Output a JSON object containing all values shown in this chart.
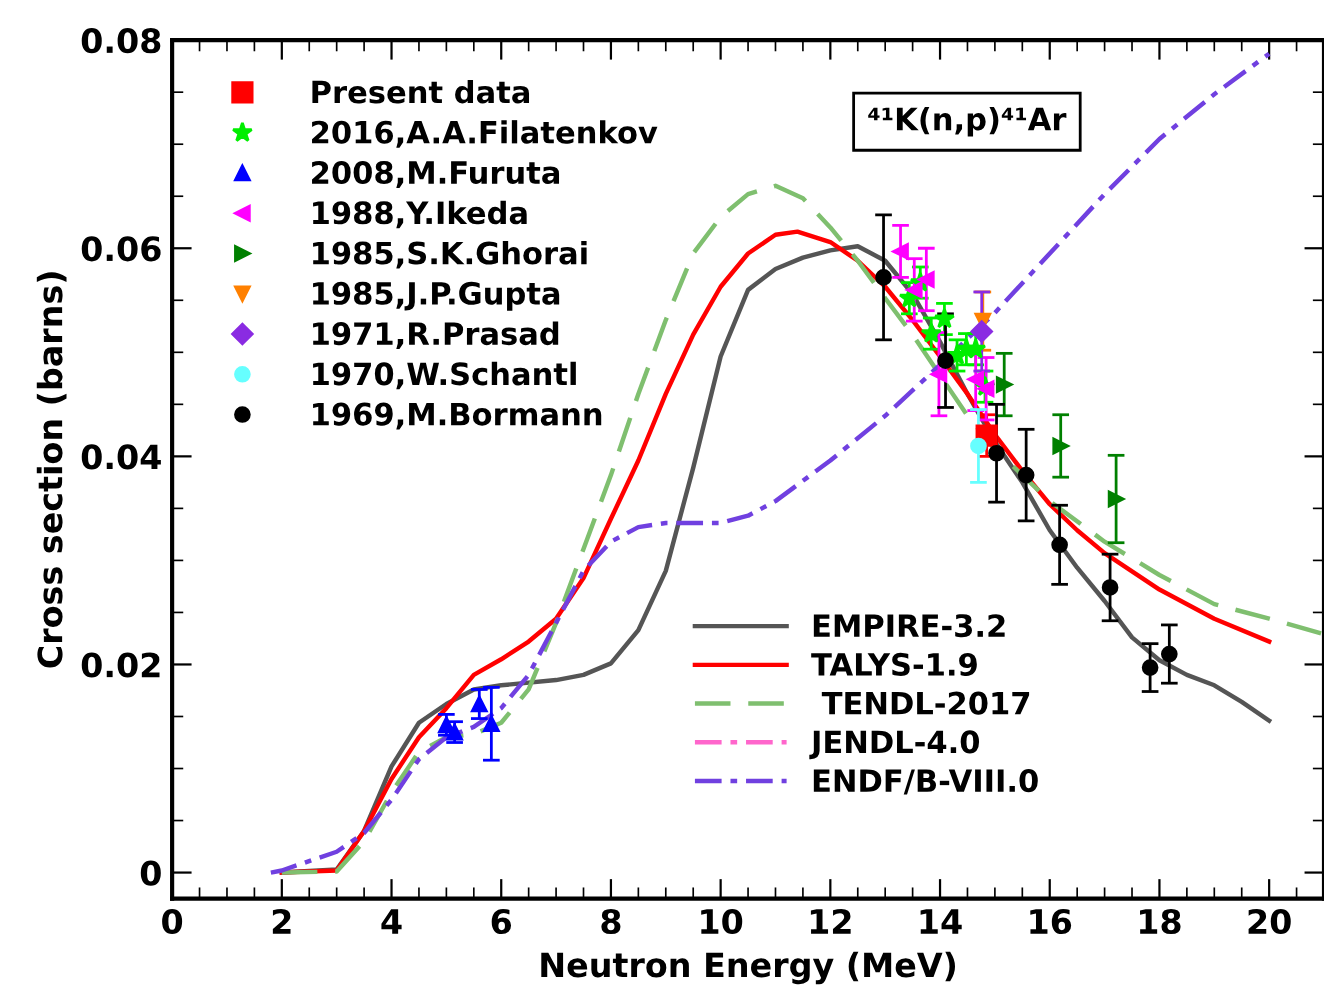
{
  "chart_data": {
    "type": "line",
    "xlabel": "Neutron Energy (MeV)",
    "ylabel": "Cross section (barns)",
    "annotations": [
      "⁴¹K(n,p)⁴¹Ar"
    ],
    "xlim": [
      0,
      21
    ],
    "ylim": [
      -0.0025,
      0.08
    ],
    "xticks": [
      0,
      2,
      4,
      6,
      8,
      10,
      12,
      14,
      16,
      18,
      20
    ],
    "yticks": [
      0,
      0.02,
      0.04,
      0.06,
      0.08
    ],
    "legend": "top left",
    "grid": false,
    "series": [
      {
        "name": "Present data",
        "type": "scatter",
        "marker": "square",
        "color": "#ff0000",
        "x": [
          14.85
        ],
        "values": [
          0.042
        ],
        "errors": [
          0.002
        ]
      },
      {
        "name": "2016,A.A.Filatenkov",
        "type": "scatter",
        "marker": "star",
        "color": "#00ee00",
        "x": [
          13.44,
          13.64,
          13.84,
          14.08,
          14.31,
          14.48,
          14.65,
          14.82
        ],
        "values": [
          0.0552,
          0.0567,
          0.0518,
          0.0532,
          0.0497,
          0.0503,
          0.0503,
          0.0467
        ],
        "errors": [
          0.0015,
          0.0015,
          0.0015,
          0.0015,
          0.0015,
          0.0015,
          0.0015,
          0.0015
        ]
      },
      {
        "name": "2008,M.Furuta",
        "type": "scatter",
        "marker": "triangle",
        "color": "#0000ff",
        "x": [
          5.0,
          5.15,
          5.6,
          5.82
        ],
        "values": [
          0.0142,
          0.0135,
          0.0162,
          0.0143
        ],
        "errors": [
          0.001,
          0.001,
          0.0014,
          0.0035
        ]
      },
      {
        "name": "1988,Y.Ikeda",
        "type": "scatter",
        "marker": "triangle_left",
        "color": "#ff00ff",
        "x": [
          13.28,
          13.53,
          13.75,
          13.98,
          14.65,
          14.84
        ],
        "values": [
          0.0597,
          0.056,
          0.057,
          0.0479,
          0.0474,
          0.0465
        ],
        "errors": [
          0.0025,
          0.003,
          0.003,
          0.004,
          0.003,
          0.003
        ]
      },
      {
        "name": "1985,S.K.Ghorai",
        "type": "scatter",
        "marker": "triangle_right",
        "color": "#008000",
        "x": [
          15.17,
          16.2,
          17.21
        ],
        "values": [
          0.0469,
          0.041,
          0.0359
        ],
        "errors": [
          0.003,
          0.003,
          0.0042
        ]
      },
      {
        "name": "1985,J.P.Gupta",
        "type": "scatter",
        "marker": "triangle_down",
        "color": "#ff8000",
        "x": [
          14.78
        ],
        "values": [
          0.053
        ],
        "errors": [
          0.0028
        ]
      },
      {
        "name": "1971,R.Prasad",
        "type": "scatter",
        "marker": "diamond",
        "color": "#8a2be2",
        "x": [
          14.76
        ],
        "values": [
          0.052
        ],
        "errors": [
          0.0038
        ]
      },
      {
        "name": "1970,W.Schantl",
        "type": "scatter",
        "marker": "circle",
        "color": "#66ffff",
        "x": [
          14.7
        ],
        "values": [
          0.041
        ],
        "errors": [
          0.0035
        ]
      },
      {
        "name": "1969,M.Bormann",
        "type": "scatter",
        "marker": "circle",
        "color": "#000000",
        "x": [
          12.97,
          14.1,
          15.03,
          15.57,
          16.18,
          17.1,
          17.83,
          18.18
        ],
        "values": [
          0.0572,
          0.0492,
          0.0403,
          0.0382,
          0.0315,
          0.0274,
          0.0197,
          0.021
        ],
        "errors": [
          0.006,
          0.0045,
          0.0047,
          0.0044,
          0.0038,
          0.0032,
          0.0023,
          0.0028
        ]
      },
      {
        "name": "EMPIRE-3.2",
        "line_style": "solid",
        "color": "#555555",
        "x": [
          2,
          3,
          3.5,
          4,
          4.5,
          5,
          5.5,
          6,
          7,
          7.5,
          8,
          8.5,
          9,
          9.5,
          10,
          10.5,
          11,
          11.5,
          12,
          12.5,
          13,
          13.5,
          14,
          14.5,
          15,
          15.5,
          16,
          16.5,
          17,
          17.5,
          18,
          18.5,
          19,
          19.5,
          20
        ],
        "values": [
          0,
          0.0003,
          0.004,
          0.0102,
          0.0144,
          0.0162,
          0.0176,
          0.018,
          0.0185,
          0.019,
          0.0201,
          0.0233,
          0.029,
          0.0389,
          0.0496,
          0.056,
          0.058,
          0.0591,
          0.0598,
          0.0602,
          0.0588,
          0.0556,
          0.051,
          0.046,
          0.0414,
          0.0375,
          0.0329,
          0.0293,
          0.0261,
          0.0226,
          0.0204,
          0.019,
          0.018,
          0.0164,
          0.0146
        ]
      },
      {
        "name": "TALYS-1.9",
        "line_style": "solid",
        "color": "#ff0000",
        "x": [
          2,
          3,
          3.5,
          4,
          4.5,
          5,
          5.5,
          6,
          6.5,
          7,
          7.5,
          8,
          8.5,
          9,
          9.5,
          10,
          10.5,
          11,
          11.4,
          12,
          12.5,
          13,
          13.5,
          14,
          14.5,
          15,
          15.5,
          16,
          16.5,
          17,
          18,
          19,
          20
        ],
        "values": [
          0,
          0.0002,
          0.004,
          0.009,
          0.013,
          0.0158,
          0.019,
          0.0205,
          0.0222,
          0.0244,
          0.0283,
          0.034,
          0.0396,
          0.046,
          0.0517,
          0.0563,
          0.0595,
          0.0613,
          0.0616,
          0.0606,
          0.0588,
          0.0563,
          0.0531,
          0.0496,
          0.046,
          0.0421,
          0.0386,
          0.0354,
          0.0329,
          0.0307,
          0.0272,
          0.0244,
          0.0222
        ]
      },
      {
        "name": " TENDL-2017",
        "line_style": "dashed",
        "color": "#7fbf6f",
        "x": [
          2,
          3,
          3.5,
          4,
          4.5,
          5,
          5.5,
          6,
          6.5,
          7,
          7.5,
          8,
          8.5,
          9,
          9.5,
          10,
          10.5,
          11,
          11.5,
          12,
          12.5,
          13,
          13.5,
          14,
          14.5,
          15,
          15.5,
          16,
          17,
          18,
          19,
          20,
          21
        ],
        "values": [
          0,
          0.0001,
          0.003,
          0.0077,
          0.0116,
          0.013,
          0.0133,
          0.0144,
          0.0176,
          0.024,
          0.0311,
          0.0382,
          0.046,
          0.0531,
          0.0595,
          0.063,
          0.0652,
          0.066,
          0.0648,
          0.062,
          0.0588,
          0.0552,
          0.0517,
          0.0478,
          0.0439,
          0.0407,
          0.0382,
          0.0357,
          0.0318,
          0.0286,
          0.0258,
          0.0244,
          0.0229
        ]
      },
      {
        "name": "JENDL-4.0",
        "line_style": "dashdot",
        "color": "#ff66cc"
      },
      {
        "name": "ENDF/B-VIII.0",
        "line_style": "dashdot",
        "color": "#7040e0",
        "x": [
          1.8,
          2,
          3,
          3.5,
          4,
          4.5,
          5,
          5.5,
          6,
          6.5,
          7,
          7.5,
          8,
          8.5,
          9,
          10,
          10.5,
          11,
          12,
          13,
          14,
          15,
          16,
          17,
          18,
          19,
          20
        ],
        "values": [
          0,
          0.0002,
          0.002,
          0.0038,
          0.007,
          0.0109,
          0.013,
          0.014,
          0.0158,
          0.019,
          0.024,
          0.029,
          0.0318,
          0.0332,
          0.0336,
          0.0336,
          0.0343,
          0.0357,
          0.0396,
          0.0439,
          0.0488,
          0.0538,
          0.0595,
          0.0652,
          0.0705,
          0.0748,
          0.0787
        ]
      }
    ]
  }
}
